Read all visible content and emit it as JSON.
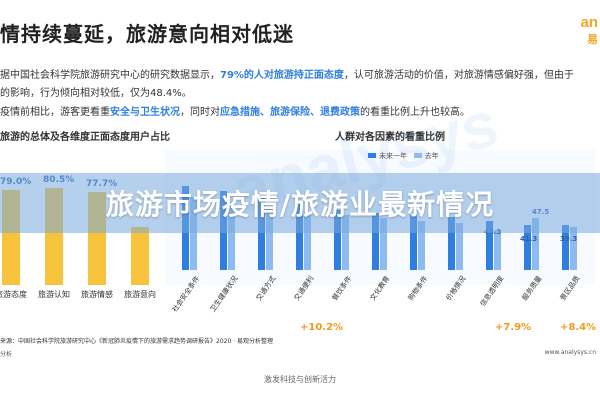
{
  "slide": {
    "title": "情持续蔓延，旅游意向相对低迷",
    "logo_text": "an",
    "logo_sub": "易",
    "para1_a": "据中国社会科学院旅游研究中心的研究数据显示，",
    "para1_hl": "79%的人对旅游持正面态度",
    "para1_b": "，认可旅游活动的价值，对旅游情感偏好强，但由于",
    "para2": "的影响，行为倾向相对较低，仅为48.4%。",
    "para3_a": "疫情前相比，游客更看重",
    "para3_hl1": "安全与卫生状况",
    "para3_b": "，同时对",
    "para3_hl2": "应急措施、旅游保险、退费政策",
    "para3_c": "的看重比例上升也较高。",
    "left_section_title": "旅游的总体及各维度正面态度用户占比",
    "right_section_title": "人群对各因素的看重比例",
    "legend_before": "未来一年",
    "legend_after": "去年",
    "badges": [
      "+10.2%",
      "+7.9%",
      "+8.4%"
    ],
    "footer_source": "来源：中国社会科学院旅游研究中心《新冠肺炎疫情下的旅游需求趋势调研报告》2020 · 易观分析整理",
    "footer_note": "分析",
    "footer_url": "www.analysys.cn",
    "bottom_caption": "激发科技与创新活力",
    "banner_text": "旅游市场疫情/旅游业最新情况",
    "watermark": "analysys",
    "colors": {
      "accent": "#2f7fe0",
      "bar": "#f7c33c",
      "badge": "#f39a1e"
    }
  },
  "chart_data": [
    {
      "type": "bar",
      "title": "旅游的总体及各维度正面态度用户占比",
      "categories": [
        "旅游态度",
        "旅游认知",
        "旅游情感",
        "旅游意向"
      ],
      "values": [
        79.0,
        80.5,
        77.7,
        48.4
      ],
      "labels": [
        "79.0%",
        "80.5%",
        "77.7%",
        ""
      ],
      "ylim": [
        0,
        100
      ]
    },
    {
      "type": "bar",
      "title": "人群对各因素的看重比例",
      "categories": [
        "社会安全条件",
        "卫生健康状况",
        "交通方式",
        "交通便利",
        "餐饮条件",
        "文化教育",
        "购物条件",
        "价格情况",
        "信息透明度",
        "服务质量",
        "景区品质"
      ],
      "series": [
        {
          "name": "未来一年",
          "values": [
            76,
            72,
            66,
            60,
            55,
            52,
            50,
            48,
            44.3,
            41.3,
            40.9
          ]
        },
        {
          "name": "去年",
          "values": [
            66,
            62,
            58,
            53,
            50,
            47,
            45,
            43,
            36.4,
            47.5,
            39.3
          ]
        }
      ],
      "labels": [
        "44.3",
        "41.3",
        "47.5",
        "39.3"
      ],
      "ylim": [
        0,
        100
      ]
    }
  ]
}
